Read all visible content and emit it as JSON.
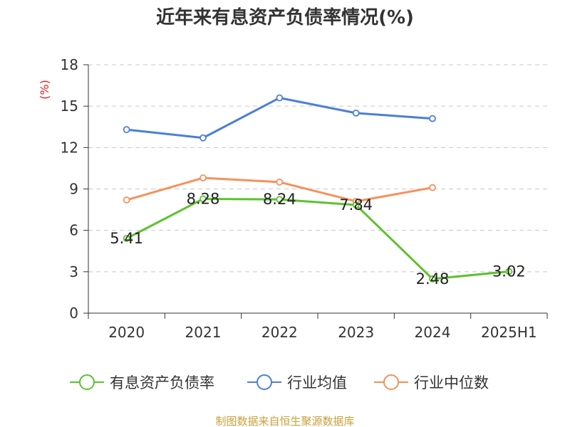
{
  "chart_data": {
    "type": "line",
    "title": "近年来有息资产负债率情况(%)",
    "y_unit": "(%)",
    "categories": [
      "2020",
      "2021",
      "2022",
      "2023",
      "2024",
      "2025H1"
    ],
    "yticks": [
      "0",
      "3",
      "6",
      "9",
      "12",
      "15",
      "18"
    ],
    "ylim": [
      0,
      18
    ],
    "grid": true,
    "legend_position": "bottom",
    "series": [
      {
        "name": "有息资产负债率",
        "color": "#5cc22e",
        "values": [
          5.41,
          8.28,
          8.24,
          7.84,
          2.48,
          3.02
        ],
        "labels": [
          "5.41",
          "8.28",
          "8.24",
          "7.84",
          "2.48",
          "3.02"
        ]
      },
      {
        "name": "行业均值",
        "color": "#4b7fd6",
        "values": [
          13.3,
          12.7,
          15.6,
          14.5,
          14.1,
          null
        ]
      },
      {
        "name": "行业中位数",
        "color": "#f5915c",
        "values": [
          8.2,
          9.8,
          9.5,
          8.1,
          9.1,
          null
        ]
      }
    ]
  },
  "footer": {
    "source": "制图数据来自恒生聚源数据库"
  }
}
